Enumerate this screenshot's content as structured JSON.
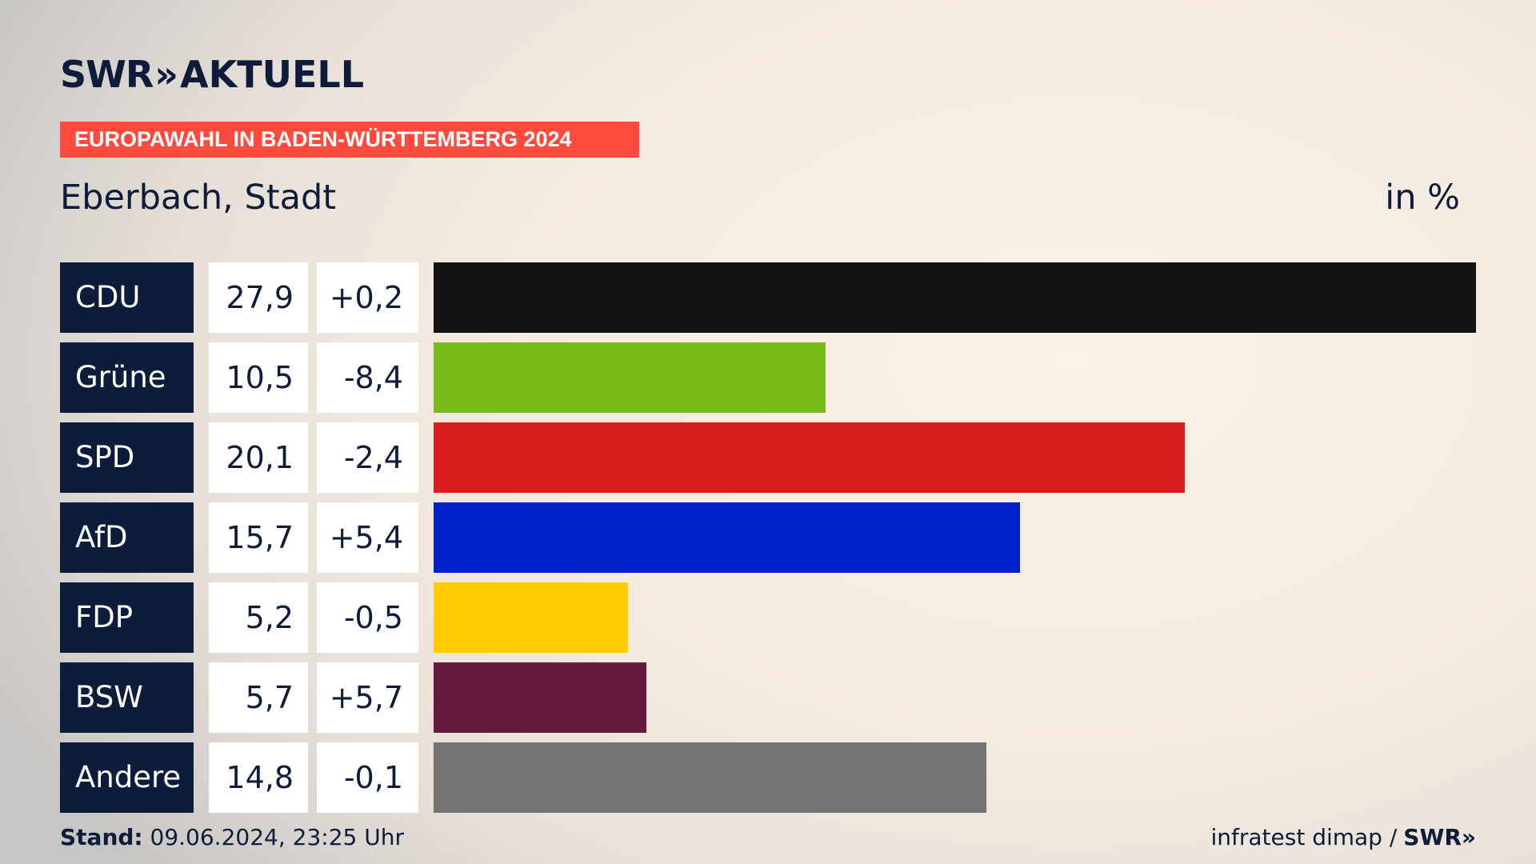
{
  "logo": {
    "brand": "SWR",
    "chevrons": "»",
    "product": "AKTUELL"
  },
  "banner": "EUROPAWAHL IN BADEN-WÜRTTEMBERG 2024",
  "region": "Eberbach, Stadt",
  "unit": "in %",
  "chart_data": {
    "type": "bar",
    "orientation": "horizontal",
    "categories": [
      "CDU",
      "Grüne",
      "SPD",
      "AfD",
      "FDP",
      "BSW",
      "Andere"
    ],
    "values": [
      27.9,
      10.5,
      20.1,
      15.7,
      5.2,
      5.7,
      14.8
    ],
    "value_labels": [
      "27,9",
      "10,5",
      "20,1",
      "15,7",
      "5,2",
      "5,7",
      "14,8"
    ],
    "diff_labels": [
      "+0,2",
      "-8,4",
      "-2,4",
      "+5,4",
      "-0,5",
      "+5,7",
      "-0,1"
    ],
    "colors": [
      "#141414",
      "#78bc1b",
      "#d71f1d",
      "#0020c8",
      "#ffcc00",
      "#661a3e",
      "#737373"
    ],
    "xlim": [
      0,
      27.9
    ]
  },
  "footer": {
    "stand_label": "Stand:",
    "stand_value": " 09.06.2024, 23:25 Uhr",
    "source": "infratest dimap /",
    "source_brand": "SWR»"
  }
}
